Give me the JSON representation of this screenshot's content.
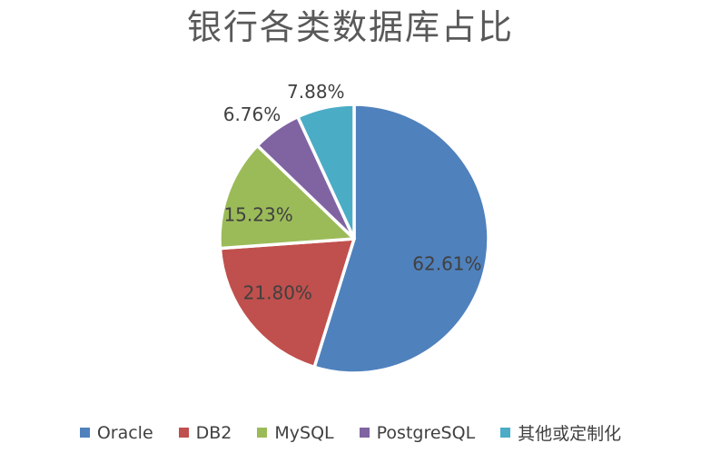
{
  "chart_data": {
    "type": "pie",
    "title": "银行各类数据库占比",
    "categories": [
      "Oracle",
      "DB2",
      "MySQL",
      "PostgreSQL",
      "其他或定制化"
    ],
    "slugs": [
      "oracle",
      "db2",
      "mysql",
      "postgresql",
      "other-or-custom"
    ],
    "values": [
      62.61,
      21.8,
      15.23,
      6.76,
      7.88
    ],
    "labels": [
      "62.61%",
      "21.80%",
      "15.23%",
      "6.76%",
      "7.88%"
    ],
    "colors": [
      "#4F81BD",
      "#C0504D",
      "#9BBB59",
      "#8064A2",
      "#4BACC6"
    ],
    "start_angle_deg": 0,
    "direction": "clockwise",
    "legend_position": "bottom",
    "label_style": {
      "inside_for_large_slices": true,
      "outside_for_small_slices": true,
      "text_color": "#404040"
    },
    "slice_border_color": "#FFFFFF",
    "title_color": "#595959",
    "background_color": "#FFFFFF"
  }
}
